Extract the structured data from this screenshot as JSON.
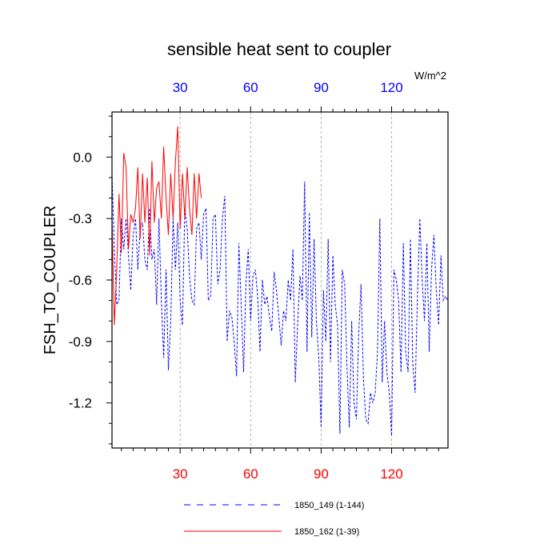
{
  "chart_data": {
    "type": "line",
    "title": "sensible heat sent to coupler",
    "ylabel": "FSH_TO_COUPLER",
    "units_label": "W/m^2",
    "xlim": [
      1,
      144
    ],
    "ylim": [
      -1.42,
      0.22
    ],
    "x_ticks": [
      30,
      60,
      90,
      120
    ],
    "x_tick_labels": [
      "30",
      "60",
      "90",
      "120"
    ],
    "y_ticks": [
      0.0,
      -0.3,
      -0.6,
      -0.9,
      -1.2
    ],
    "y_tick_labels": [
      "0.0",
      "-0.3",
      "-0.6",
      "-0.9",
      "-1.2"
    ],
    "grid": "vertical dashed at x ticks",
    "legend_position": "bottom",
    "colors": {
      "bottom_tick_labels": "#ff0000",
      "top_tick_labels": "#0000ff"
    },
    "series": [
      {
        "name": "1850_149 (1-144)",
        "color": "#0000ff",
        "style": "dashed",
        "x_start": 1,
        "values": [
          -0.08,
          -0.45,
          -0.72,
          -0.7,
          -0.3,
          -0.45,
          -0.3,
          -0.48,
          -0.65,
          -0.38,
          -0.3,
          -0.55,
          -0.35,
          -0.32,
          -0.5,
          -0.55,
          -0.25,
          -0.5,
          -0.45,
          -0.72,
          -0.3,
          -0.7,
          -0.98,
          -0.55,
          -1.04,
          -0.8,
          -0.3,
          -0.55,
          -0.32,
          -0.7,
          -0.82,
          -0.25,
          -0.35,
          -0.58,
          -0.7,
          -0.72,
          -0.35,
          -0.32,
          -0.5,
          -0.28,
          -0.25,
          -0.7,
          -0.68,
          -0.3,
          -0.28,
          -0.62,
          -0.55,
          -0.3,
          -0.19,
          -0.9,
          -0.75,
          -0.78,
          -0.9,
          -1.07,
          -0.42,
          -0.72,
          -1.05,
          -0.62,
          -0.45,
          -0.8,
          -0.58,
          -0.55,
          -0.68,
          -0.95,
          -0.6,
          -0.72,
          -0.68,
          -0.78,
          -0.85,
          -0.56,
          -0.65,
          -0.78,
          -0.92,
          -0.75,
          -0.8,
          -0.6,
          -0.7,
          -0.45,
          -1.1,
          -0.82,
          -0.58,
          -0.7,
          -0.12,
          -0.95,
          -0.27,
          -0.88,
          -0.4,
          -0.8,
          -0.98,
          -1.32,
          -0.65,
          -0.9,
          -0.4,
          -1.0,
          -0.48,
          -0.72,
          -0.82,
          -1.35,
          -0.55,
          -0.62,
          -1.02,
          -1.32,
          -0.8,
          -1.2,
          -1.28,
          -0.86,
          -0.62,
          -1.08,
          -1.28,
          -1.3,
          -1.15,
          -1.2,
          -1.15,
          -0.95,
          -0.3,
          -1.1,
          -0.8,
          -1.05,
          -1.15,
          -1.36,
          -0.55,
          -0.6,
          -0.7,
          -1.05,
          -0.42,
          -0.95,
          -1.05,
          -0.4,
          -1.0,
          -1.15,
          -0.68,
          -0.3,
          -0.6,
          -0.8,
          -0.42,
          -0.95,
          -0.55,
          -0.38,
          -0.65,
          -0.82,
          -0.48,
          -0.7,
          -0.68,
          -0.7
        ]
      },
      {
        "name": "1850_162 (1-39)",
        "color": "#ff0000",
        "style": "solid",
        "x_start": 1,
        "values": [
          -0.3,
          -0.82,
          -0.55,
          -0.18,
          -0.47,
          0.02,
          -0.05,
          -0.45,
          -0.28,
          -0.32,
          -0.25,
          -0.05,
          -0.4,
          -0.08,
          -0.32,
          -0.1,
          -0.48,
          -0.02,
          -0.32,
          -0.15,
          -0.12,
          -0.3,
          0.05,
          -0.2,
          -0.38,
          -0.08,
          -0.3,
          -0.02,
          0.15,
          -0.35,
          -0.08,
          -0.3,
          -0.05,
          -0.25,
          -0.38,
          -0.08,
          -0.3,
          -0.08,
          -0.2
        ]
      }
    ]
  }
}
